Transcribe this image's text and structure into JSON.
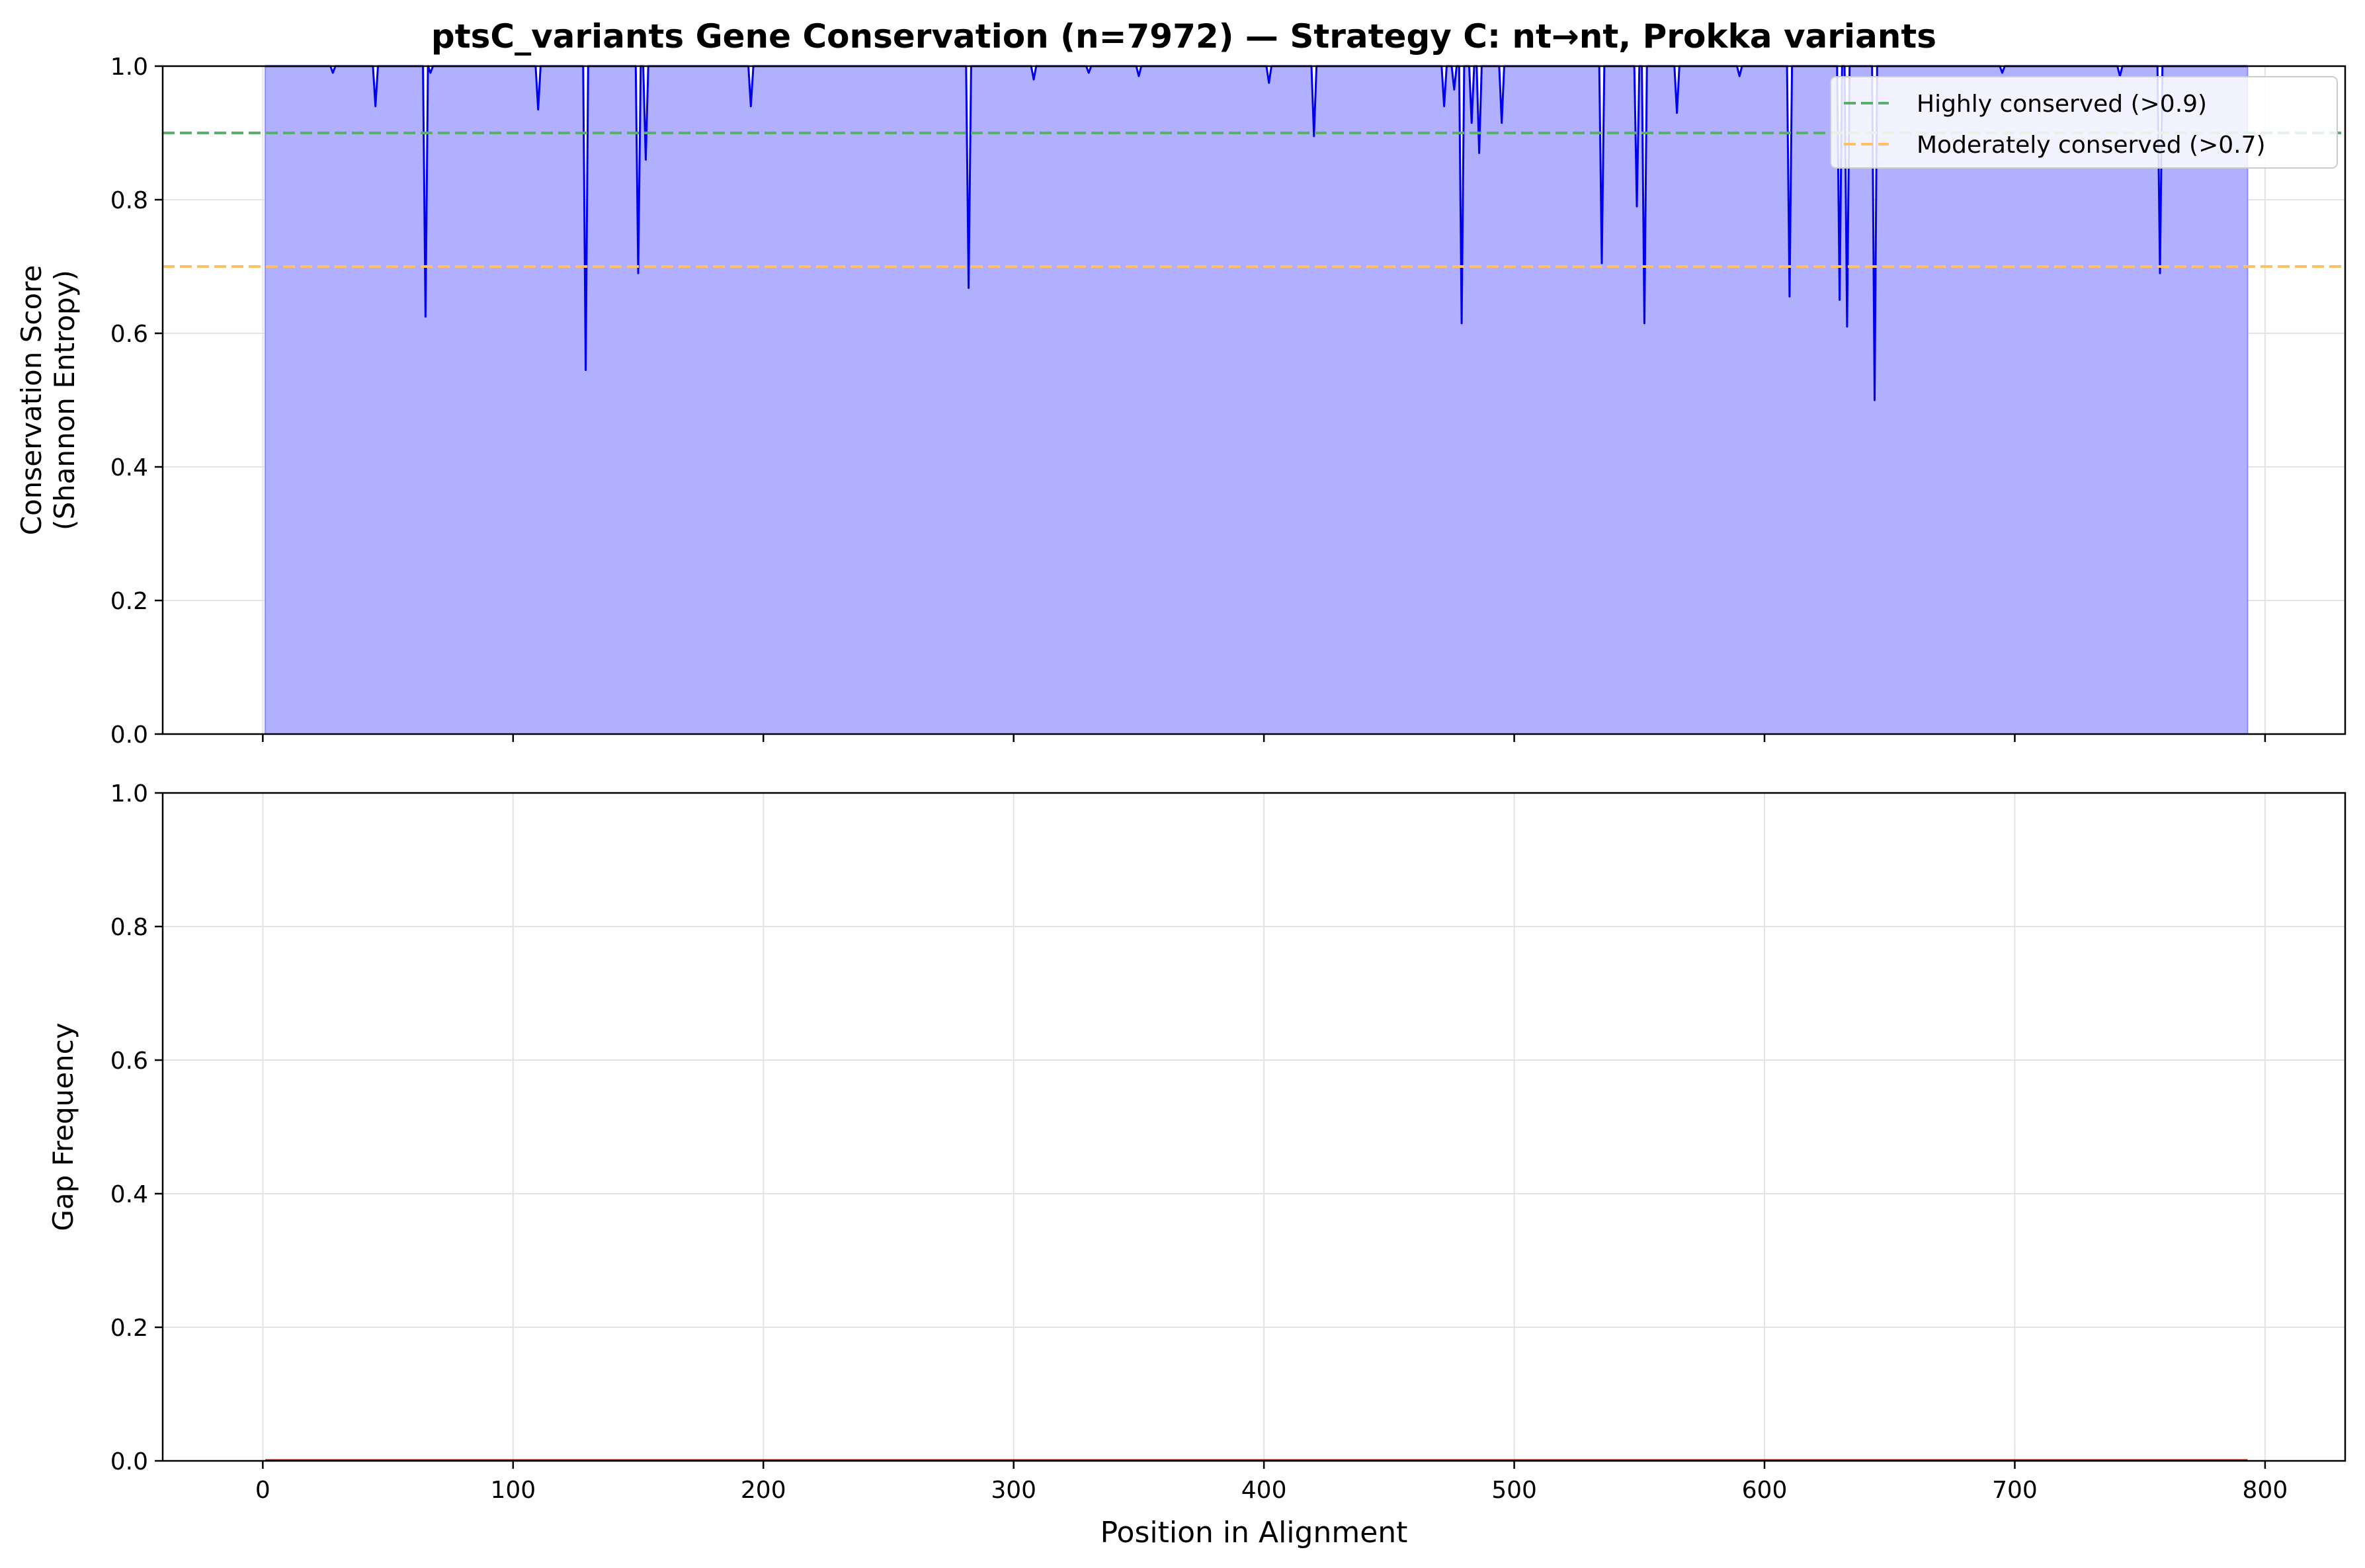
{
  "figure": {
    "title": "ptsC_variants Gene Conservation (n=7972) — Strategy C: nt→nt, Prokka variants"
  },
  "chart_data": [
    {
      "type": "area",
      "panel": "top",
      "title": "ptsC_variants Gene Conservation (n=7972) — Strategy C: nt→nt, Prokka variants",
      "xlabel": "",
      "ylabel_lines": [
        "Conservation Score",
        "(Shannon Entropy)"
      ],
      "xlim": [
        -40,
        832
      ],
      "ylim": [
        0,
        1
      ],
      "xticks": [
        0,
        100,
        200,
        300,
        400,
        500,
        600,
        700,
        800
      ],
      "xtick_labels_shown": false,
      "yticks": [
        0.0,
        0.2,
        0.4,
        0.6,
        0.8,
        1.0
      ],
      "ytick_labels": [
        "0.0",
        "0.2",
        "0.4",
        "0.6",
        "0.8",
        "1.0"
      ],
      "grid": true,
      "legend_position": "top-right",
      "series": [
        {
          "kind": "line-fill",
          "color": "#0000ee",
          "fill_color": "#b0b0ff",
          "x_start": 1,
          "x_end": 793,
          "baseline": 1.0,
          "dips": [
            [
              28,
              0.99
            ],
            [
              45,
              0.94
            ],
            [
              65,
              0.625
            ],
            [
              67,
              0.99
            ],
            [
              110,
              0.935
            ],
            [
              129,
              0.545
            ],
            [
              150,
              0.69
            ],
            [
              153,
              0.86
            ],
            [
              195,
              0.94
            ],
            [
              282,
              0.668
            ],
            [
              308,
              0.98
            ],
            [
              330,
              0.99
            ],
            [
              350,
              0.985
            ],
            [
              402,
              0.975
            ],
            [
              420,
              0.895
            ],
            [
              472,
              0.94
            ],
            [
              476,
              0.965
            ],
            [
              479,
              0.615
            ],
            [
              483,
              0.915
            ],
            [
              486,
              0.87
            ],
            [
              495,
              0.915
            ],
            [
              535,
              0.705
            ],
            [
              549,
              0.79
            ],
            [
              552,
              0.615
            ],
            [
              565,
              0.93
            ],
            [
              590,
              0.985
            ],
            [
              610,
              0.655
            ],
            [
              630,
              0.65
            ],
            [
              633,
              0.61
            ],
            [
              644,
              0.5
            ],
            [
              695,
              0.99
            ],
            [
              742,
              0.985
            ],
            [
              758,
              0.69
            ]
          ]
        }
      ],
      "threshold_lines": [
        {
          "label": "Highly conserved (>0.9)",
          "y": 0.9,
          "color": "#5aaf6f"
        },
        {
          "label": "Moderately conserved (>0.7)",
          "y": 0.7,
          "color": "#ffbf66"
        }
      ]
    },
    {
      "type": "line",
      "panel": "bottom",
      "xlabel": "Position in Alignment",
      "ylabel": "Gap Frequency",
      "xlim": [
        -40,
        832
      ],
      "ylim": [
        0,
        1
      ],
      "xticks": [
        0,
        100,
        200,
        300,
        400,
        500,
        600,
        700,
        800
      ],
      "xtick_labels": [
        "0",
        "100",
        "200",
        "300",
        "400",
        "500",
        "600",
        "700",
        "800"
      ],
      "yticks": [
        0.0,
        0.2,
        0.4,
        0.6,
        0.8,
        1.0
      ],
      "ytick_labels": [
        "0.0",
        "0.2",
        "0.4",
        "0.6",
        "0.8",
        "1.0"
      ],
      "grid": true,
      "series": [
        {
          "kind": "line",
          "color": "#cc0000",
          "x": [
            1,
            793
          ],
          "y": [
            0,
            0
          ]
        }
      ]
    }
  ]
}
